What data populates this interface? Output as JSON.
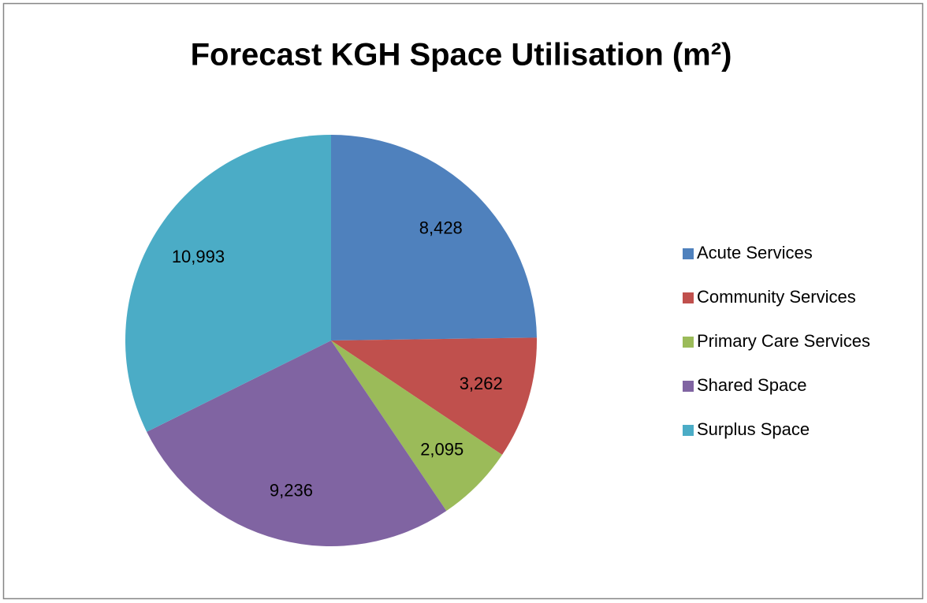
{
  "chart_data": {
    "type": "pie",
    "title": "Forecast KGH Space Utilisation (m²)",
    "categories": [
      "Acute Services",
      "Community Services",
      "Primary Care Services",
      "Shared Space",
      "Surplus Space"
    ],
    "values": [
      8428,
      3262,
      2095,
      9236,
      10993
    ],
    "value_labels": [
      "8,428",
      "3,262",
      "2,095",
      "9,236",
      "10,993"
    ],
    "colors": [
      "#4F81BD",
      "#C0504D",
      "#9BBB59",
      "#8064A2",
      "#4BACC6"
    ],
    "legend": "right"
  }
}
